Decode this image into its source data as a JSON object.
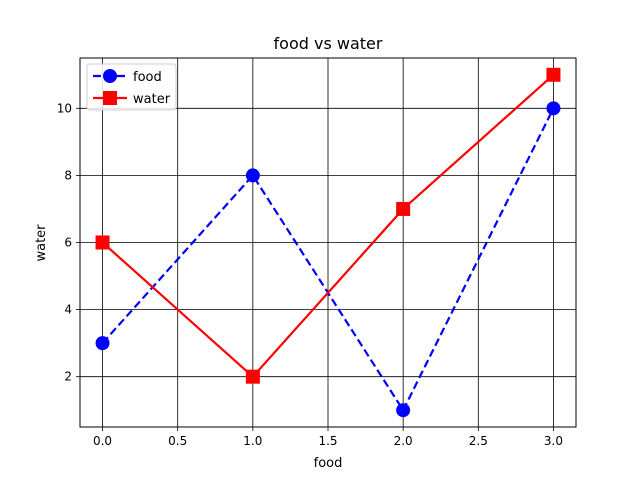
{
  "chart_data": {
    "type": "line",
    "title": "food vs water",
    "xlabel": "food",
    "ylabel": "water",
    "xlim": [
      -0.15,
      3.15
    ],
    "ylim": [
      0.5,
      11.5
    ],
    "xticks": [
      0.0,
      0.5,
      1.0,
      1.5,
      2.0,
      2.5,
      3.0
    ],
    "xtick_labels": [
      "0.0",
      "0.5",
      "1.0",
      "1.5",
      "2.0",
      "2.5",
      "3.0"
    ],
    "yticks": [
      2,
      4,
      6,
      8,
      10
    ],
    "ytick_labels": [
      "2",
      "4",
      "6",
      "8",
      "10"
    ],
    "grid": true,
    "legend_position": "top-left",
    "x": [
      0,
      1,
      2,
      3
    ],
    "series": [
      {
        "name": "food",
        "values": [
          3,
          8,
          1,
          10
        ],
        "color": "#0000ff",
        "line_style": "dashed",
        "marker": "circle"
      },
      {
        "name": "water",
        "values": [
          6,
          2,
          7,
          11
        ],
        "color": "#ff0000",
        "line_style": "solid",
        "marker": "square"
      }
    ]
  }
}
